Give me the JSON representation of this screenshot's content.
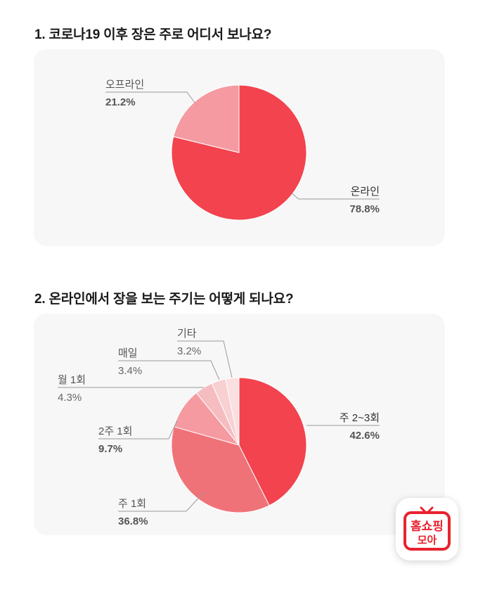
{
  "q1": {
    "title": "1. 코로나19 이후 장은 주로 어디서 보나요?"
  },
  "q2": {
    "title": "2. 온라인에서 장을 보는 주기는 어떻게 되나요?"
  },
  "colors": {
    "red": "#f2434f",
    "red_mid": "#f07279",
    "pink": "#f49aa0",
    "pink_light": "#f6bdc0",
    "pink_lighter": "#f8d0d2",
    "pink_lightest": "#fadfe0",
    "card_bg": "#f7f7f7"
  },
  "chart_data": [
    {
      "type": "pie",
      "title": "1. 코로나19 이후 장은 주로 어디서 보나요?",
      "slices": [
        {
          "label": "온라인",
          "value": 78.8,
          "value_label": "78.8%",
          "color": "#f2434f"
        },
        {
          "label": "오프라인",
          "value": 21.2,
          "value_label": "21.2%",
          "color": "#f49aa0"
        }
      ]
    },
    {
      "type": "pie",
      "title": "2. 온라인에서 장을 보는 주기는 어떻게 되나요?",
      "slices": [
        {
          "label": "주 2~3회",
          "value": 42.6,
          "value_label": "42.6%",
          "color": "#f2434f"
        },
        {
          "label": "주 1회",
          "value": 36.8,
          "value_label": "36.8%",
          "color": "#f07279"
        },
        {
          "label": "2주 1회",
          "value": 9.7,
          "value_label": "9.7%",
          "color": "#f49aa0"
        },
        {
          "label": "월 1회",
          "value": 4.3,
          "value_label": "4.3%",
          "color": "#f6bdc0"
        },
        {
          "label": "매일",
          "value": 3.4,
          "value_label": "3.4%",
          "color": "#f8d0d2"
        },
        {
          "label": "기타",
          "value": 3.2,
          "value_label": "3.2%",
          "color": "#fadfe0"
        }
      ]
    }
  ],
  "logo": {
    "line1": "홈쇼핑",
    "line2": "모아",
    "color": "#e8222e"
  }
}
